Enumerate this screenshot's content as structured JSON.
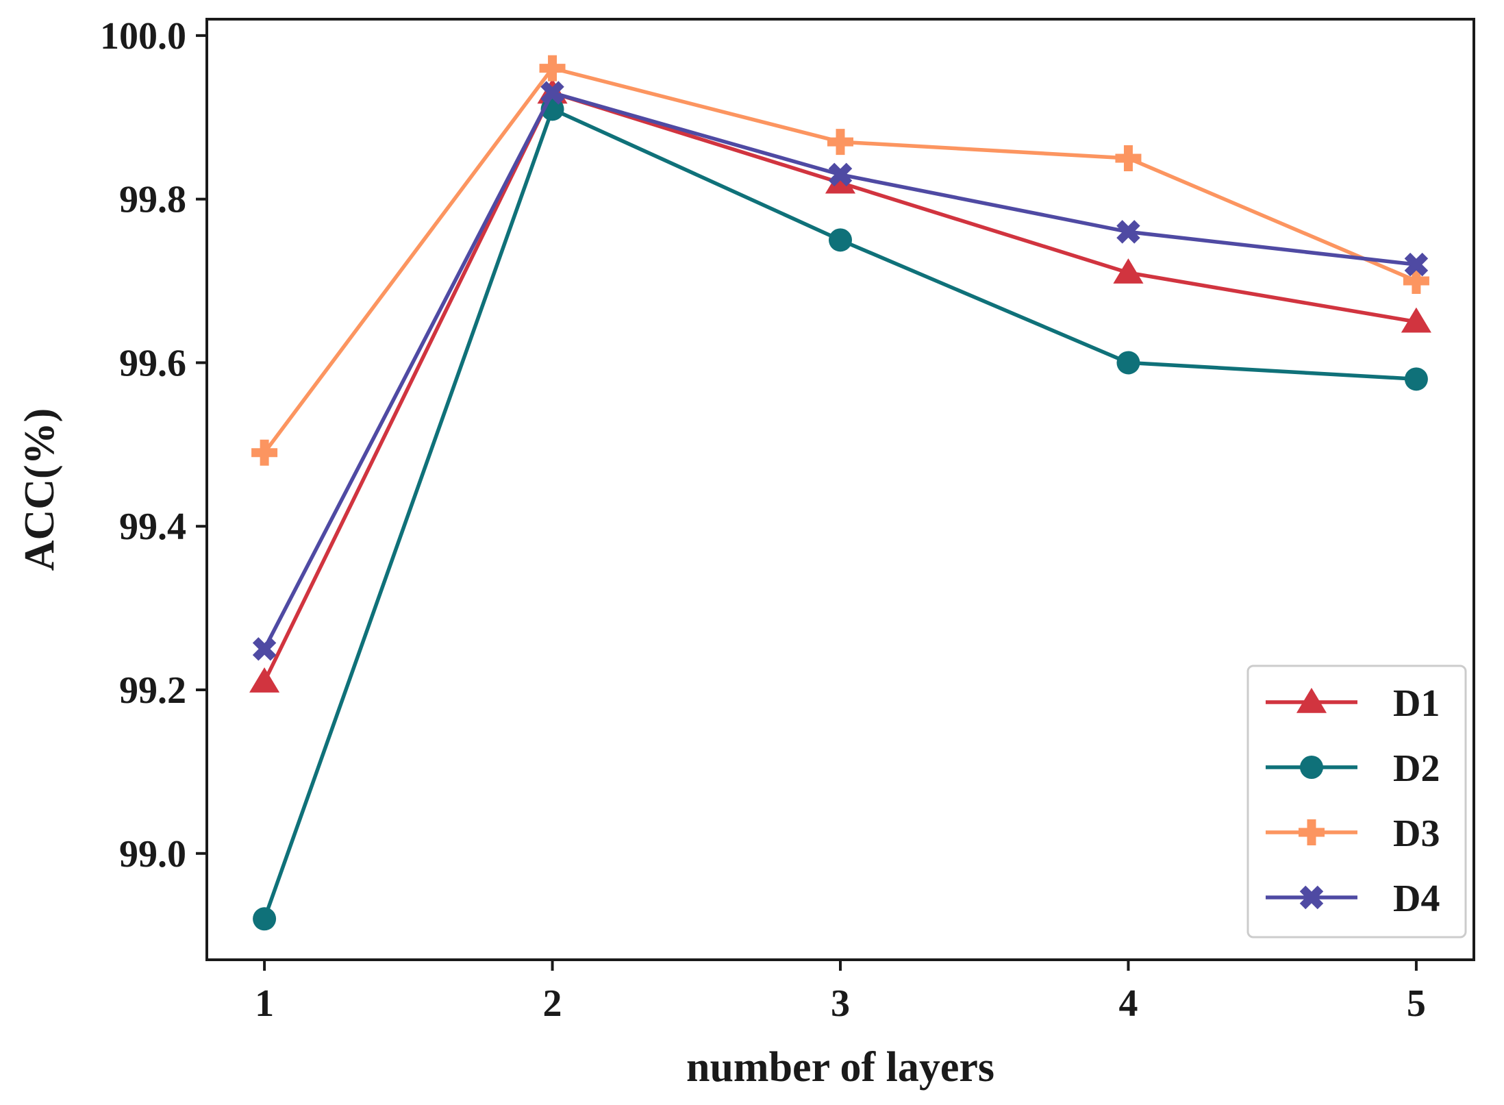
{
  "chart_data": {
    "type": "line",
    "title": "",
    "xlabel": "number of layers",
    "ylabel": "ACC(%)",
    "x": [
      1,
      2,
      3,
      4,
      5
    ],
    "xticks": [
      "1",
      "2",
      "3",
      "4",
      "5"
    ],
    "xlim": [
      0.8,
      5.2
    ],
    "ylim": [
      98.87,
      100.02
    ],
    "yticks": [
      "99.0",
      "99.2",
      "99.4",
      "99.6",
      "99.8",
      "100.0"
    ],
    "grid": false,
    "legend_position": "lower-right",
    "series": [
      {
        "name": "D1",
        "color": "#d1343f",
        "marker": "triangle",
        "values": [
          99.21,
          99.93,
          99.82,
          99.71,
          99.65
        ]
      },
      {
        "name": "D2",
        "color": "#0f7179",
        "marker": "circle",
        "values": [
          98.92,
          99.91,
          99.75,
          99.6,
          99.58
        ]
      },
      {
        "name": "D3",
        "color": "#fc9560",
        "marker": "plus",
        "values": [
          99.49,
          99.96,
          99.87,
          99.85,
          99.7
        ]
      },
      {
        "name": "D4",
        "color": "#4f4aa3",
        "marker": "x",
        "values": [
          99.25,
          99.93,
          99.83,
          99.76,
          99.72
        ]
      }
    ]
  }
}
